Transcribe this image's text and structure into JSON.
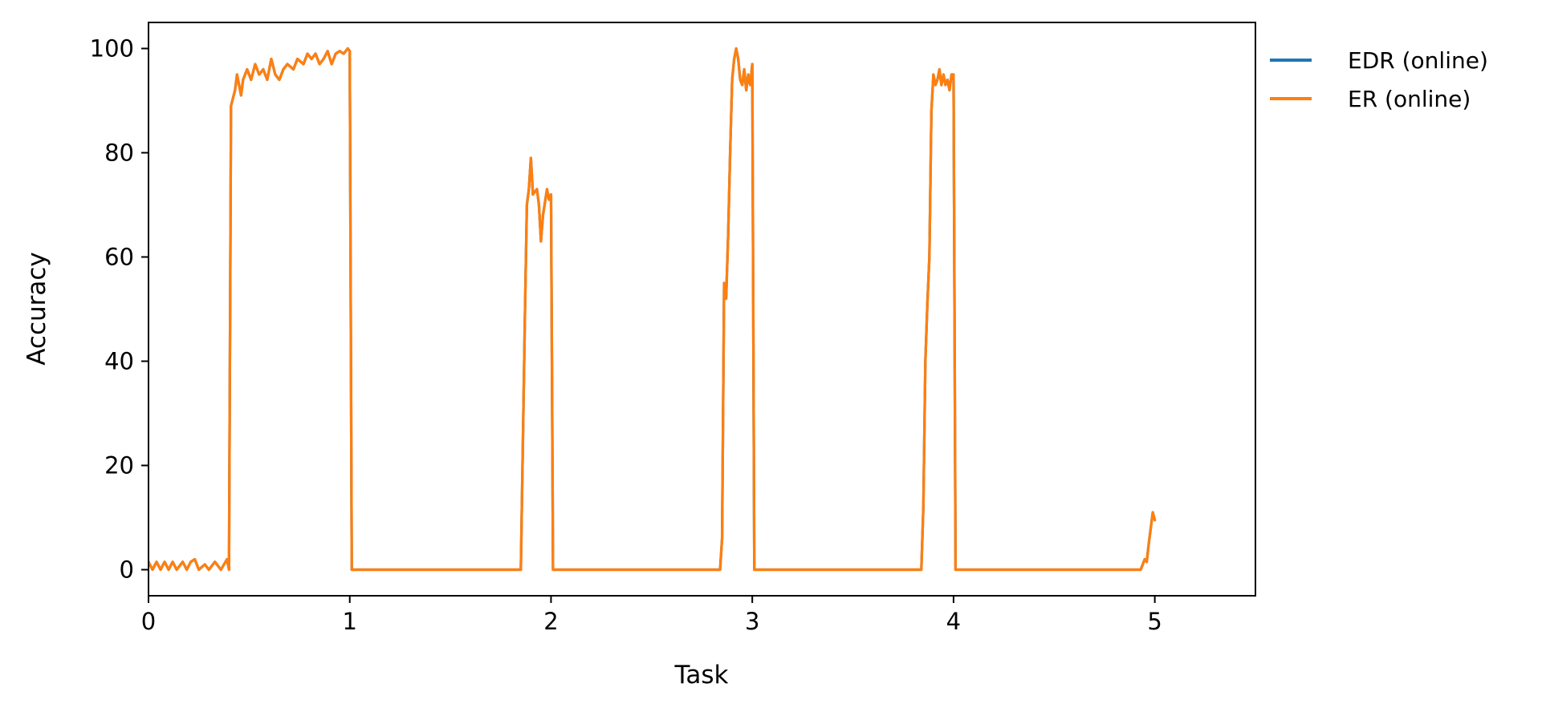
{
  "chart_data": {
    "type": "line",
    "title": "",
    "xlabel": "Task",
    "ylabel": "Accuracy",
    "xlim": [
      0,
      5.5
    ],
    "ylim": [
      -5,
      105
    ],
    "xticks": [
      0,
      1,
      2,
      3,
      4,
      5
    ],
    "yticks": [
      0,
      20,
      40,
      60,
      80,
      100
    ],
    "grid": false,
    "legend_position": "outside-top-right",
    "series": [
      {
        "name": "EDR (online)",
        "color": "#1f77b4",
        "points": [
          [
            0.0,
            1.5
          ],
          [
            0.02,
            0.0
          ],
          [
            0.04,
            1.5
          ],
          [
            0.06,
            0.0
          ],
          [
            0.08,
            1.5
          ],
          [
            0.1,
            0.0
          ],
          [
            0.12,
            1.5
          ],
          [
            0.14,
            0.0
          ],
          [
            0.17,
            1.5
          ],
          [
            0.19,
            0.0
          ],
          [
            0.21,
            1.5
          ],
          [
            0.23,
            2.0
          ],
          [
            0.25,
            0.0
          ],
          [
            0.28,
            1.0
          ],
          [
            0.3,
            0.0
          ],
          [
            0.33,
            1.5
          ],
          [
            0.36,
            0.0
          ],
          [
            0.39,
            2.0
          ],
          [
            0.4,
            0.0
          ],
          [
            0.41,
            89.0
          ],
          [
            0.43,
            92.0
          ],
          [
            0.44,
            95.0
          ],
          [
            0.46,
            91.0
          ],
          [
            0.47,
            94.0
          ],
          [
            0.49,
            96.0
          ],
          [
            0.51,
            94.0
          ],
          [
            0.53,
            97.0
          ],
          [
            0.55,
            95.0
          ],
          [
            0.57,
            96.0
          ],
          [
            0.59,
            94.0
          ],
          [
            0.61,
            98.0
          ],
          [
            0.63,
            95.0
          ],
          [
            0.65,
            94.0
          ],
          [
            0.67,
            96.0
          ],
          [
            0.69,
            97.0
          ],
          [
            0.72,
            96.0
          ],
          [
            0.74,
            98.0
          ],
          [
            0.77,
            97.0
          ],
          [
            0.79,
            99.0
          ],
          [
            0.81,
            98.0
          ],
          [
            0.83,
            99.0
          ],
          [
            0.85,
            97.0
          ],
          [
            0.87,
            98.0
          ],
          [
            0.89,
            99.5
          ],
          [
            0.91,
            97.0
          ],
          [
            0.93,
            99.0
          ],
          [
            0.95,
            99.5
          ],
          [
            0.97,
            99.0
          ],
          [
            0.99,
            100.0
          ],
          [
            1.0,
            99.5
          ],
          [
            1.01,
            0.0
          ],
          [
            1.85,
            0.0
          ],
          [
            1.87,
            48.0
          ],
          [
            1.88,
            70.0
          ],
          [
            1.89,
            73.0
          ],
          [
            1.9,
            79.0
          ],
          [
            1.91,
            72.0
          ],
          [
            1.93,
            73.0
          ],
          [
            1.94,
            70.0
          ],
          [
            1.95,
            63.0
          ],
          [
            1.96,
            68.0
          ],
          [
            1.98,
            73.0
          ],
          [
            1.99,
            71.0
          ],
          [
            2.0,
            72.0
          ],
          [
            2.01,
            0.0
          ],
          [
            2.84,
            0.0
          ],
          [
            2.85,
            6.0
          ],
          [
            2.86,
            55.0
          ],
          [
            2.87,
            52.0
          ],
          [
            2.88,
            64.0
          ],
          [
            2.89,
            80.0
          ],
          [
            2.9,
            94.0
          ],
          [
            2.91,
            98.0
          ],
          [
            2.92,
            100.0
          ],
          [
            2.93,
            98.0
          ],
          [
            2.94,
            94.0
          ],
          [
            2.95,
            93.0
          ],
          [
            2.96,
            96.0
          ],
          [
            2.97,
            92.0
          ],
          [
            2.98,
            95.0
          ],
          [
            2.99,
            93.0
          ],
          [
            3.0,
            97.0
          ],
          [
            3.01,
            0.0
          ],
          [
            3.84,
            0.0
          ],
          [
            3.85,
            12.0
          ],
          [
            3.86,
            40.0
          ],
          [
            3.87,
            51.0
          ],
          [
            3.88,
            60.0
          ],
          [
            3.89,
            88.0
          ],
          [
            3.9,
            95.0
          ],
          [
            3.91,
            93.0
          ],
          [
            3.92,
            94.0
          ],
          [
            3.93,
            96.0
          ],
          [
            3.94,
            93.0
          ],
          [
            3.95,
            95.0
          ],
          [
            3.96,
            93.0
          ],
          [
            3.97,
            94.0
          ],
          [
            3.98,
            92.0
          ],
          [
            3.99,
            95.0
          ],
          [
            4.0,
            95.0
          ],
          [
            4.01,
            0.0
          ],
          [
            4.93,
            0.0
          ],
          [
            4.95,
            2.0
          ],
          [
            4.96,
            1.5
          ],
          [
            4.97,
            5.0
          ],
          [
            4.98,
            8.0
          ],
          [
            4.99,
            11.0
          ],
          [
            5.0,
            9.5
          ]
        ]
      },
      {
        "name": "ER (online)",
        "color": "#ff7f0e",
        "points": [
          [
            0.0,
            1.5
          ],
          [
            0.02,
            0.0
          ],
          [
            0.04,
            1.5
          ],
          [
            0.06,
            0.0
          ],
          [
            0.08,
            1.5
          ],
          [
            0.1,
            0.0
          ],
          [
            0.12,
            1.5
          ],
          [
            0.14,
            0.0
          ],
          [
            0.17,
            1.5
          ],
          [
            0.19,
            0.0
          ],
          [
            0.21,
            1.5
          ],
          [
            0.23,
            2.0
          ],
          [
            0.25,
            0.0
          ],
          [
            0.28,
            1.0
          ],
          [
            0.3,
            0.0
          ],
          [
            0.33,
            1.5
          ],
          [
            0.36,
            0.0
          ],
          [
            0.39,
            2.0
          ],
          [
            0.4,
            0.0
          ],
          [
            0.41,
            89.0
          ],
          [
            0.43,
            92.0
          ],
          [
            0.44,
            95.0
          ],
          [
            0.46,
            91.0
          ],
          [
            0.47,
            94.0
          ],
          [
            0.49,
            96.0
          ],
          [
            0.51,
            94.0
          ],
          [
            0.53,
            97.0
          ],
          [
            0.55,
            95.0
          ],
          [
            0.57,
            96.0
          ],
          [
            0.59,
            94.0
          ],
          [
            0.61,
            98.0
          ],
          [
            0.63,
            95.0
          ],
          [
            0.65,
            94.0
          ],
          [
            0.67,
            96.0
          ],
          [
            0.69,
            97.0
          ],
          [
            0.72,
            96.0
          ],
          [
            0.74,
            98.0
          ],
          [
            0.77,
            97.0
          ],
          [
            0.79,
            99.0
          ],
          [
            0.81,
            98.0
          ],
          [
            0.83,
            99.0
          ],
          [
            0.85,
            97.0
          ],
          [
            0.87,
            98.0
          ],
          [
            0.89,
            99.5
          ],
          [
            0.91,
            97.0
          ],
          [
            0.93,
            99.0
          ],
          [
            0.95,
            99.5
          ],
          [
            0.97,
            99.0
          ],
          [
            0.99,
            100.0
          ],
          [
            1.0,
            99.5
          ],
          [
            1.01,
            0.0
          ],
          [
            1.85,
            0.0
          ],
          [
            1.87,
            48.0
          ],
          [
            1.88,
            70.0
          ],
          [
            1.89,
            73.0
          ],
          [
            1.9,
            79.0
          ],
          [
            1.91,
            72.0
          ],
          [
            1.93,
            73.0
          ],
          [
            1.94,
            70.0
          ],
          [
            1.95,
            63.0
          ],
          [
            1.96,
            68.0
          ],
          [
            1.98,
            73.0
          ],
          [
            1.99,
            71.0
          ],
          [
            2.0,
            72.0
          ],
          [
            2.01,
            0.0
          ],
          [
            2.84,
            0.0
          ],
          [
            2.85,
            6.0
          ],
          [
            2.86,
            55.0
          ],
          [
            2.87,
            52.0
          ],
          [
            2.88,
            64.0
          ],
          [
            2.89,
            80.0
          ],
          [
            2.9,
            94.0
          ],
          [
            2.91,
            98.0
          ],
          [
            2.92,
            100.0
          ],
          [
            2.93,
            98.0
          ],
          [
            2.94,
            94.0
          ],
          [
            2.95,
            93.0
          ],
          [
            2.96,
            96.0
          ],
          [
            2.97,
            92.0
          ],
          [
            2.98,
            95.0
          ],
          [
            2.99,
            93.0
          ],
          [
            3.0,
            97.0
          ],
          [
            3.01,
            0.0
          ],
          [
            3.84,
            0.0
          ],
          [
            3.85,
            12.0
          ],
          [
            3.86,
            40.0
          ],
          [
            3.87,
            51.0
          ],
          [
            3.88,
            60.0
          ],
          [
            3.89,
            88.0
          ],
          [
            3.9,
            95.0
          ],
          [
            3.91,
            93.0
          ],
          [
            3.92,
            94.0
          ],
          [
            3.93,
            96.0
          ],
          [
            3.94,
            93.0
          ],
          [
            3.95,
            95.0
          ],
          [
            3.96,
            93.0
          ],
          [
            3.97,
            94.0
          ],
          [
            3.98,
            92.0
          ],
          [
            3.99,
            95.0
          ],
          [
            4.0,
            95.0
          ],
          [
            4.01,
            0.0
          ],
          [
            4.93,
            0.0
          ],
          [
            4.95,
            2.0
          ],
          [
            4.96,
            1.5
          ],
          [
            4.97,
            5.0
          ],
          [
            4.98,
            8.0
          ],
          [
            4.99,
            11.0
          ],
          [
            5.0,
            9.5
          ]
        ]
      }
    ]
  }
}
